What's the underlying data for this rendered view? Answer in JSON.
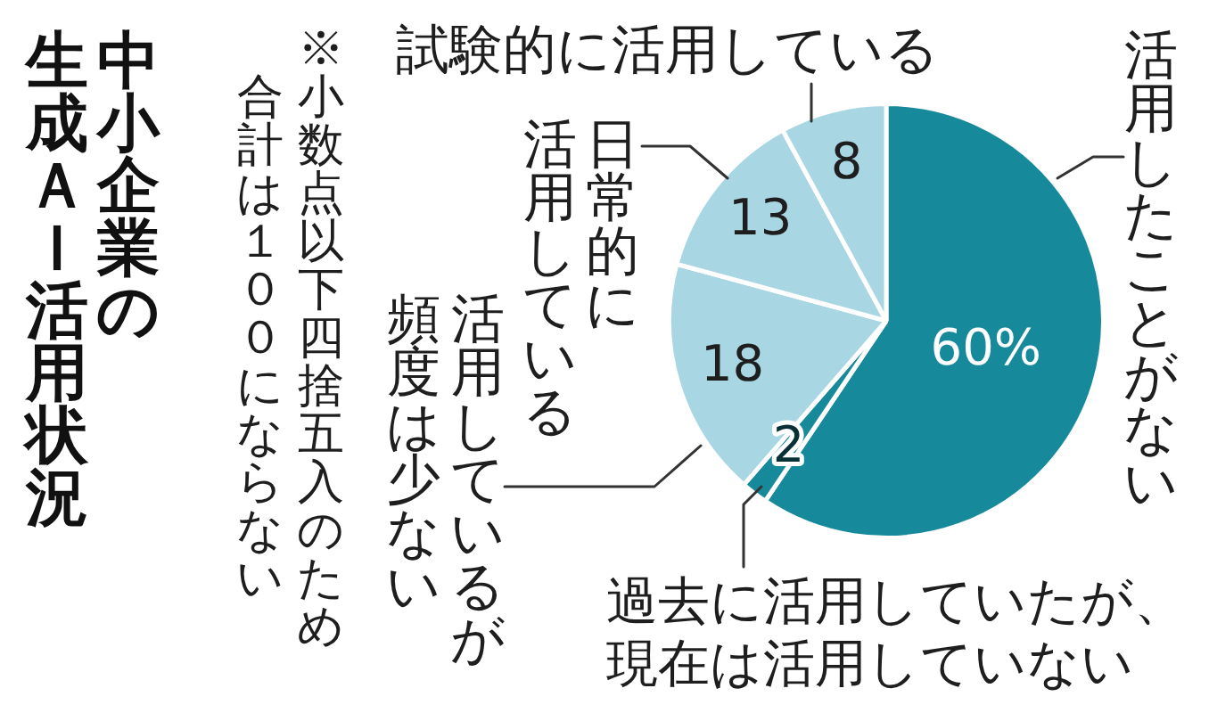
{
  "chart_data": {
    "type": "pie",
    "title": "中小企業の生成ＡＩ活用状況",
    "categories": [
      "活用したことがない",
      "過去に活用していたが、現在は活用していない",
      "活用しているが頻度は少ない",
      "日常的に活用している",
      "試験的に活用している"
    ],
    "values": [
      60,
      2,
      18,
      13,
      8
    ],
    "colors": [
      "#168a9b",
      "#168a9b",
      "#a8d6e3",
      "#a8d6e3",
      "#a8d6e3"
    ],
    "value_labels": [
      "60%",
      "2",
      "18",
      "13",
      "8"
    ],
    "annotations": [
      "※小数点以下四捨五入のため合計は１００にならない"
    ],
    "legend": false
  }
}
